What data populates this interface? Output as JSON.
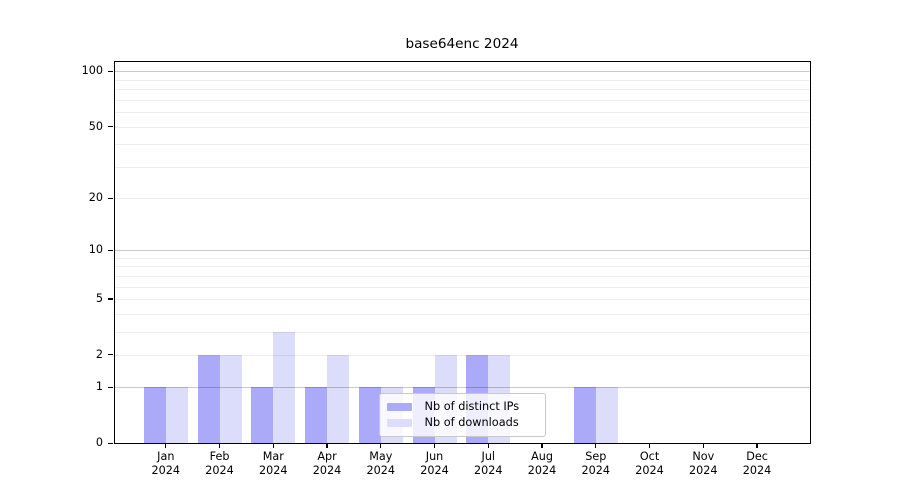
{
  "title": "base64enc 2024",
  "chart_data": {
    "type": "bar",
    "title": "base64enc 2024",
    "categories": [
      "Jan 2024",
      "Feb 2024",
      "Mar 2024",
      "Apr 2024",
      "May 2024",
      "Jun 2024",
      "Jul 2024",
      "Aug 2024",
      "Sep 2024",
      "Oct 2024",
      "Nov 2024",
      "Dec 2024"
    ],
    "series": [
      {
        "name": "Nb of distinct IPs",
        "color": "#aaaaf8",
        "values": [
          1,
          2,
          1,
          1,
          1,
          1,
          2,
          0,
          1,
          0,
          0,
          0
        ]
      },
      {
        "name": "Nb of downloads",
        "color": "#dcdcfb",
        "values": [
          1,
          2,
          3,
          2,
          1,
          2,
          2,
          0,
          1,
          0,
          0,
          0
        ]
      }
    ],
    "xlabel": "",
    "ylabel": "",
    "yscale": "log1p (y position proportional to log10(value+1))",
    "ylim": [
      0,
      114
    ],
    "y_tick_values": [
      0,
      1,
      2,
      5,
      10,
      20,
      50,
      100
    ],
    "y_tick_labels": [
      "0",
      "1",
      "2",
      "5",
      "10",
      "20",
      "50",
      "100"
    ],
    "grid": "horizontal gridlines drawn over bars",
    "grid_major_values": [
      1,
      10,
      100
    ],
    "grid_minor_values": [
      2,
      3,
      4,
      5,
      6,
      7,
      8,
      9,
      20,
      30,
      40,
      50,
      60,
      70,
      80,
      90
    ],
    "legend_position": "lower center, overlapping May-Jun bars"
  },
  "legend": {
    "items": [
      {
        "label": "Nb of distinct IPs",
        "swatch_color": "#aaaaf8"
      },
      {
        "label": "Nb of downloads",
        "swatch_color": "#dcdcfb"
      }
    ]
  },
  "colors": {
    "background": "#ffffff",
    "axis": "#000000",
    "text": "#000000",
    "grid_major": "#c9c9c9",
    "grid_minor": "#ededed",
    "bar_distinct_ips": "#aaaaf8",
    "bar_downloads": "#dcdcfb",
    "legend_border": "#c8c8c8"
  }
}
